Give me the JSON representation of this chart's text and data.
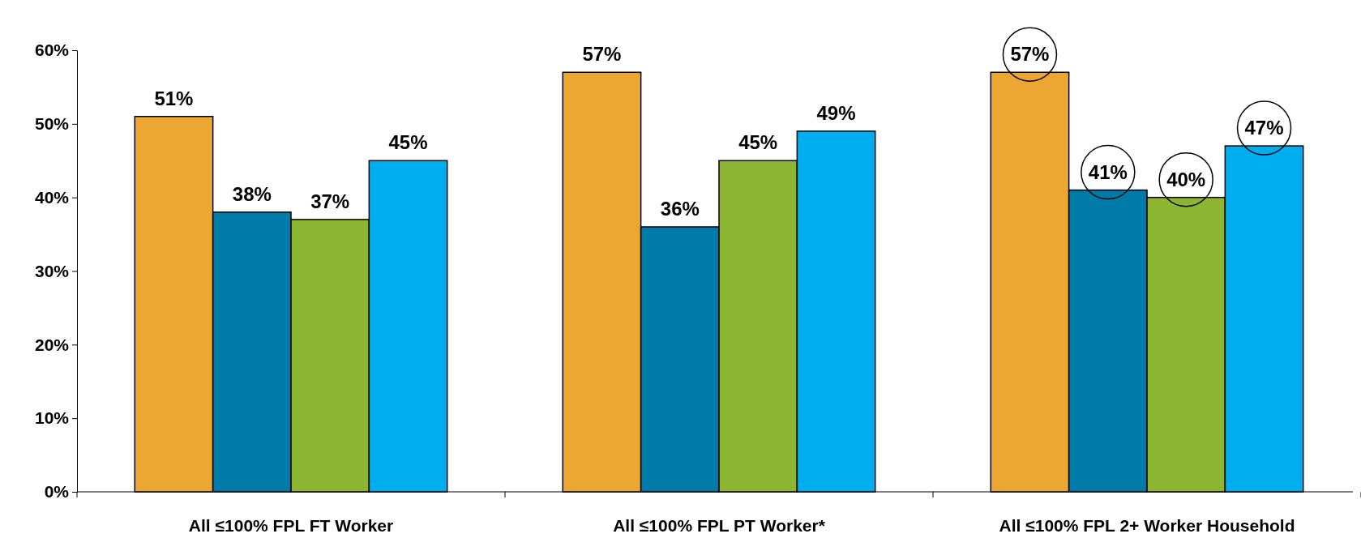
{
  "chart_data": {
    "type": "bar",
    "categories": [
      "All ≤100% FPL FT Worker",
      "All ≤100% FPL PT Worker*",
      "All ≤100% FPL 2+ Worker Household"
    ],
    "series": [
      {
        "color": "#eca733",
        "values": [
          51,
          57,
          57
        ],
        "value_labels": [
          "51%",
          "57%",
          "57%"
        ]
      },
      {
        "color": "#007aa8",
        "values": [
          38,
          36,
          41
        ],
        "value_labels": [
          "38%",
          "36%",
          "41%"
        ]
      },
      {
        "color": "#8db534",
        "values": [
          37,
          45,
          40
        ],
        "value_labels": [
          "37%",
          "45%",
          "40%"
        ]
      },
      {
        "color": "#00aeef",
        "values": [
          45,
          49,
          47
        ],
        "value_labels": [
          "45%",
          "49%",
          "47%"
        ]
      }
    ],
    "ylim": [
      0,
      60
    ],
    "yticks": [
      {
        "value": 0,
        "label": "0%"
      },
      {
        "value": 10,
        "label": "10%"
      },
      {
        "value": 20,
        "label": "20%"
      },
      {
        "value": 30,
        "label": "30%"
      },
      {
        "value": 40,
        "label": "40%"
      },
      {
        "value": 50,
        "label": "50%"
      },
      {
        "value": 60,
        "label": "60%"
      }
    ]
  }
}
